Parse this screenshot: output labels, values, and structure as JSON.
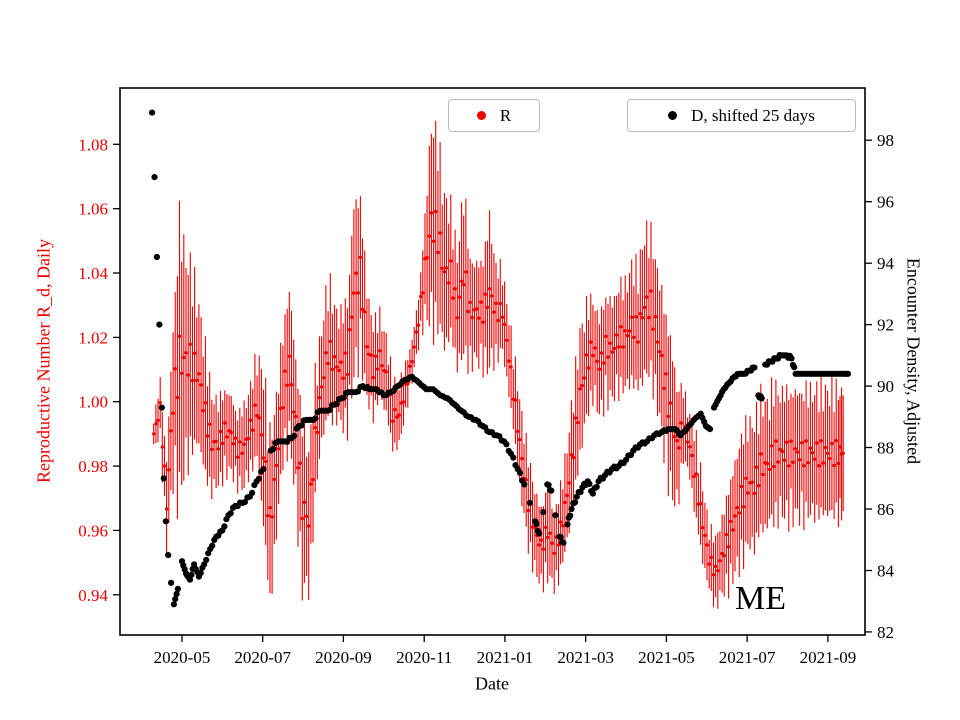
{
  "chart_data": {
    "type": "scatter",
    "title": "",
    "xlabel": "Date",
    "x_unit": "fractional months since 2020-01-01",
    "x_tick_positions": [
      4,
      6,
      8,
      10,
      12,
      14,
      16,
      18,
      20
    ],
    "x_tick_labels": [
      "2020-05",
      "2020-07",
      "2020-09",
      "2020-11",
      "2021-01",
      "2021-03",
      "2021-05",
      "2021-07",
      "2021-09"
    ],
    "x_range": [
      2.465,
      20.92
    ],
    "grid": false,
    "annotation": "ME",
    "left_axis": {
      "label": "Reproductive Number R_d, Daily",
      "color": "#ee0000",
      "ticks": [
        0.94,
        0.96,
        0.98,
        1.0,
        1.02,
        1.04,
        1.06,
        1.08
      ],
      "range": [
        0.9275,
        1.0975
      ]
    },
    "right_axis": {
      "label": "Encounter Density, Adjusted",
      "color": "#000000",
      "ticks": [
        82,
        84,
        86,
        88,
        90,
        92,
        94,
        96,
        98
      ],
      "range": [
        81.9,
        99.7
      ]
    },
    "legend": {
      "position": "top",
      "entries": [
        {
          "label": "R",
          "color": "#ee0000"
        },
        {
          "label": "D, shifted 25 days",
          "color": "#000000"
        }
      ]
    },
    "series": [
      {
        "name": "R",
        "axis": "left",
        "style": "errorbar-scatter",
        "color": "#ee0000",
        "point_format": [
          "month",
          "R_value",
          "error_halfwidth"
        ],
        "points": [
          [
            3.3,
            0.99,
            0.004
          ],
          [
            3.46,
            0.998,
            0.008
          ],
          [
            3.62,
            0.968,
            0.013
          ],
          [
            3.78,
            1.0,
            0.022
          ],
          [
            3.94,
            1.013,
            0.04
          ],
          [
            4.1,
            1.013,
            0.03
          ],
          [
            4.26,
            1.012,
            0.025
          ],
          [
            4.42,
            1.008,
            0.02
          ],
          [
            4.58,
            0.996,
            0.018
          ],
          [
            4.74,
            0.987,
            0.014
          ],
          [
            4.9,
            0.987,
            0.012
          ],
          [
            5.06,
            0.991,
            0.012
          ],
          [
            5.22,
            0.99,
            0.011
          ],
          [
            5.38,
            0.985,
            0.01
          ],
          [
            5.54,
            0.986,
            0.012
          ],
          [
            5.7,
            0.992,
            0.012
          ],
          [
            5.86,
            0.998,
            0.015
          ],
          [
            6.02,
            0.985,
            0.022
          ],
          [
            6.18,
            0.962,
            0.024
          ],
          [
            6.34,
            0.98,
            0.02
          ],
          [
            6.5,
            1.002,
            0.018
          ],
          [
            6.66,
            1.012,
            0.022
          ],
          [
            6.82,
            0.992,
            0.02
          ],
          [
            6.98,
            0.968,
            0.024
          ],
          [
            7.14,
            0.963,
            0.02
          ],
          [
            7.3,
            0.988,
            0.018
          ],
          [
            7.46,
            1.005,
            0.016
          ],
          [
            7.62,
            1.016,
            0.02
          ],
          [
            7.78,
            1.012,
            0.016
          ],
          [
            7.94,
            1.01,
            0.016
          ],
          [
            8.1,
            1.012,
            0.018
          ],
          [
            8.26,
            1.035,
            0.025
          ],
          [
            8.42,
            1.04,
            0.022
          ],
          [
            8.58,
            1.018,
            0.016
          ],
          [
            8.74,
            1.01,
            0.013
          ],
          [
            8.9,
            1.014,
            0.012
          ],
          [
            9.06,
            1.008,
            0.011
          ],
          [
            9.22,
            0.996,
            0.01
          ],
          [
            9.38,
            0.996,
            0.009
          ],
          [
            9.54,
            1.004,
            0.007
          ],
          [
            9.7,
            1.013,
            0.006
          ],
          [
            9.86,
            1.025,
            0.007
          ],
          [
            10.02,
            1.042,
            0.014
          ],
          [
            10.18,
            1.056,
            0.03
          ],
          [
            10.34,
            1.052,
            0.026
          ],
          [
            10.5,
            1.04,
            0.022
          ],
          [
            10.66,
            1.04,
            0.018
          ],
          [
            10.82,
            1.028,
            0.016
          ],
          [
            10.98,
            1.04,
            0.024
          ],
          [
            11.14,
            1.028,
            0.015
          ],
          [
            11.3,
            1.028,
            0.014
          ],
          [
            11.46,
            1.028,
            0.015
          ],
          [
            11.62,
            1.034,
            0.022
          ],
          [
            11.78,
            1.028,
            0.013
          ],
          [
            11.94,
            1.028,
            0.012
          ],
          [
            12.1,
            1.014,
            0.011
          ],
          [
            12.26,
            0.998,
            0.012
          ],
          [
            12.42,
            0.982,
            0.013
          ],
          [
            12.58,
            0.969,
            0.013
          ],
          [
            12.74,
            0.96,
            0.012
          ],
          [
            12.9,
            0.955,
            0.011
          ],
          [
            13.06,
            0.96,
            0.013
          ],
          [
            13.22,
            0.954,
            0.011
          ],
          [
            13.38,
            0.96,
            0.012
          ],
          [
            13.54,
            0.971,
            0.014
          ],
          [
            13.7,
            0.986,
            0.016
          ],
          [
            13.86,
            1.002,
            0.018
          ],
          [
            14.02,
            1.012,
            0.016
          ],
          [
            14.18,
            1.017,
            0.014
          ],
          [
            14.34,
            1.011,
            0.014
          ],
          [
            14.5,
            1.017,
            0.015
          ],
          [
            14.66,
            1.016,
            0.014
          ],
          [
            14.82,
            1.02,
            0.015
          ],
          [
            14.98,
            1.02,
            0.015
          ],
          [
            15.14,
            1.024,
            0.017
          ],
          [
            15.3,
            1.022,
            0.017
          ],
          [
            15.46,
            1.03,
            0.021
          ],
          [
            15.62,
            1.03,
            0.02
          ],
          [
            15.78,
            1.02,
            0.02
          ],
          [
            15.94,
            1.008,
            0.021
          ],
          [
            16.1,
            0.996,
            0.022
          ],
          [
            16.26,
            0.986,
            0.018
          ],
          [
            16.42,
            0.993,
            0.01
          ],
          [
            16.58,
            0.986,
            0.009
          ],
          [
            16.74,
            0.975,
            0.012
          ],
          [
            16.9,
            0.962,
            0.011
          ],
          [
            17.06,
            0.951,
            0.009
          ],
          [
            17.22,
            0.947,
            0.01
          ],
          [
            17.38,
            0.952,
            0.011
          ],
          [
            17.54,
            0.958,
            0.014
          ],
          [
            17.7,
            0.964,
            0.016
          ],
          [
            17.86,
            0.97,
            0.018
          ],
          [
            18.02,
            0.974,
            0.018
          ],
          [
            18.18,
            0.974,
            0.018
          ],
          [
            18.34,
            0.98,
            0.019
          ],
          [
            18.5,
            0.98,
            0.018
          ],
          [
            18.66,
            0.984,
            0.019
          ],
          [
            18.82,
            0.984,
            0.018
          ],
          [
            18.98,
            0.984,
            0.018
          ],
          [
            19.14,
            0.984,
            0.018
          ],
          [
            19.3,
            0.984,
            0.018
          ],
          [
            19.46,
            0.984,
            0.018
          ],
          [
            19.62,
            0.984,
            0.018
          ],
          [
            19.78,
            0.984,
            0.018
          ],
          [
            19.94,
            0.984,
            0.018
          ],
          [
            20.1,
            0.984,
            0.018
          ],
          [
            20.26,
            0.984,
            0.018
          ],
          [
            20.38,
            0.984,
            0.018
          ]
        ]
      },
      {
        "name": "D, shifted 25 days",
        "axis": "right",
        "style": "scatter",
        "color": "#000000",
        "point_format": [
          "month",
          "density_value"
        ],
        "points": [
          [
            3.26,
            98.9
          ],
          [
            3.32,
            96.8
          ],
          [
            3.38,
            94.2
          ],
          [
            3.44,
            92.0
          ],
          [
            3.5,
            89.3
          ],
          [
            3.55,
            87.0
          ],
          [
            3.6,
            85.6
          ],
          [
            3.66,
            84.5
          ],
          [
            3.73,
            83.6
          ],
          [
            3.8,
            82.9
          ],
          [
            3.9,
            83.4
          ],
          [
            4.0,
            84.3
          ],
          [
            4.1,
            83.9
          ],
          [
            4.2,
            83.7
          ],
          [
            4.3,
            84.2
          ],
          [
            4.42,
            83.8
          ],
          [
            4.55,
            84.2
          ],
          [
            4.7,
            84.7
          ],
          [
            4.85,
            85.1
          ],
          [
            5.0,
            85.3
          ],
          [
            5.15,
            85.8
          ],
          [
            5.32,
            86.1
          ],
          [
            5.5,
            86.2
          ],
          [
            5.68,
            86.4
          ],
          [
            5.85,
            86.9
          ],
          [
            6.02,
            87.3
          ],
          [
            6.2,
            87.9
          ],
          [
            6.38,
            88.2
          ],
          [
            6.55,
            88.2
          ],
          [
            6.72,
            88.3
          ],
          [
            6.9,
            88.7
          ],
          [
            7.08,
            88.9
          ],
          [
            7.25,
            88.9
          ],
          [
            7.42,
            89.2
          ],
          [
            7.6,
            89.2
          ],
          [
            7.78,
            89.4
          ],
          [
            7.95,
            89.6
          ],
          [
            8.12,
            89.8
          ],
          [
            8.3,
            89.8
          ],
          [
            8.48,
            90.0
          ],
          [
            8.65,
            89.9
          ],
          [
            8.82,
            89.9
          ],
          [
            9.0,
            89.7
          ],
          [
            9.18,
            89.8
          ],
          [
            9.35,
            90.0
          ],
          [
            9.52,
            90.2
          ],
          [
            9.7,
            90.3
          ],
          [
            9.88,
            90.1
          ],
          [
            10.05,
            89.9
          ],
          [
            10.22,
            89.9
          ],
          [
            10.4,
            89.7
          ],
          [
            10.58,
            89.6
          ],
          [
            10.75,
            89.4
          ],
          [
            10.92,
            89.2
          ],
          [
            11.1,
            89.0
          ],
          [
            11.28,
            88.9
          ],
          [
            11.45,
            88.7
          ],
          [
            11.62,
            88.5
          ],
          [
            11.8,
            88.4
          ],
          [
            11.98,
            88.2
          ],
          [
            12.15,
            87.8
          ],
          [
            12.32,
            87.3
          ],
          [
            12.48,
            86.8
          ],
          [
            12.62,
            86.2
          ],
          [
            12.75,
            85.6
          ],
          [
            12.85,
            85.2
          ],
          [
            12.95,
            85.9
          ],
          [
            13.05,
            86.8
          ],
          [
            13.15,
            86.6
          ],
          [
            13.25,
            85.8
          ],
          [
            13.35,
            85.1
          ],
          [
            13.45,
            84.9
          ],
          [
            13.55,
            85.5
          ],
          [
            13.65,
            86.0
          ],
          [
            13.78,
            86.4
          ],
          [
            13.92,
            86.7
          ],
          [
            14.05,
            86.9
          ],
          [
            14.18,
            86.5
          ],
          [
            14.32,
            86.9
          ],
          [
            14.48,
            87.1
          ],
          [
            14.65,
            87.3
          ],
          [
            14.82,
            87.4
          ],
          [
            15.0,
            87.6
          ],
          [
            15.18,
            87.9
          ],
          [
            15.35,
            88.1
          ],
          [
            15.52,
            88.2
          ],
          [
            15.7,
            88.4
          ],
          [
            15.88,
            88.5
          ],
          [
            16.05,
            88.6
          ],
          [
            16.22,
            88.6
          ],
          [
            16.35,
            88.4
          ],
          [
            16.5,
            88.6
          ],
          [
            16.68,
            88.9
          ],
          [
            16.85,
            89.1
          ],
          [
            16.98,
            88.7
          ],
          [
            17.08,
            88.6
          ],
          [
            17.18,
            89.3
          ],
          [
            17.3,
            89.6
          ],
          [
            17.42,
            89.9
          ],
          [
            17.55,
            90.1
          ],
          [
            17.68,
            90.3
          ],
          [
            17.8,
            90.4
          ],
          [
            17.92,
            90.4
          ],
          [
            18.05,
            90.5
          ],
          [
            18.18,
            90.6
          ],
          [
            18.28,
            89.7
          ],
          [
            18.36,
            89.6
          ],
          [
            18.45,
            90.7
          ],
          [
            18.58,
            90.8
          ],
          [
            18.72,
            90.9
          ],
          [
            18.85,
            91.0
          ],
          [
            18.98,
            91.0
          ],
          [
            19.1,
            90.9
          ],
          [
            19.2,
            90.4
          ],
          [
            19.35,
            90.4
          ],
          [
            19.5,
            90.4
          ],
          [
            19.65,
            90.4
          ],
          [
            19.8,
            90.4
          ],
          [
            19.95,
            90.4
          ],
          [
            20.1,
            90.4
          ],
          [
            20.25,
            90.4
          ],
          [
            20.4,
            90.4
          ],
          [
            20.5,
            90.4
          ]
        ]
      }
    ]
  }
}
